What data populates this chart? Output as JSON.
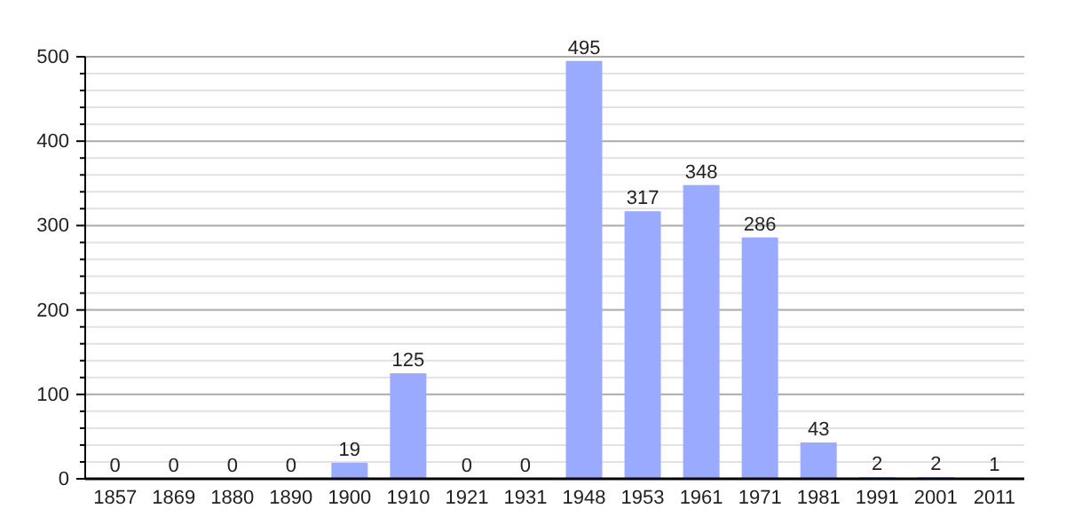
{
  "chart_data": {
    "type": "bar",
    "categories": [
      "1857",
      "1869",
      "1880",
      "1890",
      "1900",
      "1910",
      "1921",
      "1931",
      "1948",
      "1953",
      "1961",
      "1971",
      "1981",
      "1991",
      "2001",
      "2011"
    ],
    "values": [
      0,
      0,
      0,
      0,
      19,
      125,
      0,
      0,
      495,
      317,
      348,
      286,
      43,
      2,
      2,
      1
    ],
    "color": "#99aaff",
    "ylim": [
      0,
      500
    ],
    "yticks": [
      0,
      {
        "value": 20,
        "label": null
      },
      {
        "value": 40,
        "label": null
      },
      {
        "value": 60,
        "label": null
      },
      {
        "value": 80,
        "label": null
      },
      100,
      {
        "value": 120,
        "label": null
      },
      {
        "value": 140,
        "label": null
      },
      {
        "value": 160,
        "label": null
      },
      {
        "value": 180,
        "label": null
      },
      200,
      {
        "value": 220,
        "label": null
      },
      {
        "value": 240,
        "label": null
      },
      {
        "value": 260,
        "label": null
      },
      {
        "value": 280,
        "label": null
      },
      300,
      {
        "value": 320,
        "label": null
      },
      {
        "value": 340,
        "label": null
      },
      {
        "value": 360,
        "label": null
      },
      {
        "value": 380,
        "label": null
      },
      400,
      {
        "value": 420,
        "label": null
      },
      {
        "value": 440,
        "label": null
      },
      {
        "value": 460,
        "label": null
      },
      {
        "value": 480,
        "label": null
      },
      500
    ],
    "grid": true,
    "data_labels": true
  }
}
